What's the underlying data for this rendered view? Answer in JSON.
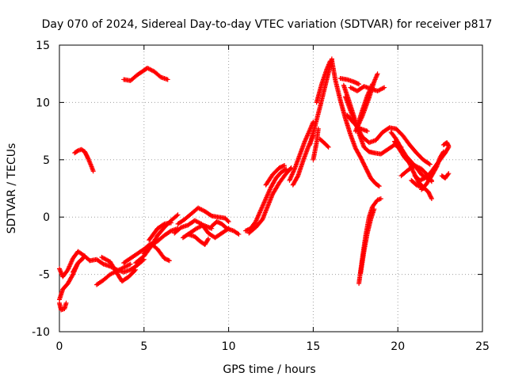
{
  "chart_data": {
    "type": "scatter",
    "title": "Day 070 of 2024, Sidereal Day-to-day VTEC variation (SDTVAR) for receiver p817",
    "xlabel": "GPS time / hours",
    "ylabel": "SDTVAR / TECUs",
    "xlim": [
      0,
      25
    ],
    "ylim": [
      -10,
      15
    ],
    "xticks": [
      "0",
      "5",
      "10",
      "15",
      "20",
      "25"
    ],
    "yticks": [
      "-10",
      "-5",
      "0",
      "5",
      "10",
      "15"
    ],
    "grid": true,
    "marker": "+",
    "color": "#ff0000",
    "segments": [
      [
        [
          0.0,
          -4.5
        ],
        [
          0.2,
          -5.2
        ],
        [
          0.5,
          -4.6
        ],
        [
          0.8,
          -3.6
        ],
        [
          1.1,
          -3.0
        ],
        [
          1.4,
          -3.3
        ],
        [
          1.8,
          -3.8
        ]
      ],
      [
        [
          0.0,
          -7.2
        ],
        [
          0.2,
          -6.3
        ],
        [
          0.5,
          -5.8
        ],
        [
          0.8,
          -5.0
        ],
        [
          1.1,
          -4.0
        ],
        [
          1.5,
          -3.4
        ]
      ],
      [
        [
          0.0,
          -7.5
        ],
        [
          0.1,
          -8.1
        ],
        [
          0.3,
          -8.0
        ],
        [
          0.4,
          -7.5
        ]
      ],
      [
        [
          0.8,
          -4.8
        ],
        [
          1.1,
          -4.0
        ],
        [
          1.4,
          -3.6
        ]
      ],
      [
        [
          0.9,
          5.6
        ],
        [
          1.1,
          5.8
        ],
        [
          1.3,
          5.9
        ],
        [
          1.5,
          5.7
        ],
        [
          1.7,
          5.1
        ],
        [
          1.9,
          4.4
        ],
        [
          2.0,
          4.0
        ]
      ],
      [
        [
          1.8,
          -3.8
        ],
        [
          2.2,
          -3.7
        ],
        [
          2.6,
          -4.1
        ],
        [
          3.0,
          -4.3
        ],
        [
          3.4,
          -4.6
        ],
        [
          3.8,
          -4.8
        ],
        [
          4.2,
          -4.6
        ],
        [
          4.6,
          -4.2
        ],
        [
          5.0,
          -3.7
        ]
      ],
      [
        [
          2.2,
          -5.9
        ],
        [
          2.6,
          -5.5
        ],
        [
          3.0,
          -5.0
        ],
        [
          3.4,
          -4.7
        ],
        [
          3.8,
          -4.4
        ],
        [
          4.2,
          -4.1
        ]
      ],
      [
        [
          2.5,
          -3.5
        ],
        [
          3.0,
          -3.9
        ],
        [
          3.4,
          -4.9
        ],
        [
          3.7,
          -5.6
        ],
        [
          4.1,
          -5.2
        ],
        [
          4.5,
          -4.6
        ]
      ],
      [
        [
          3.8,
          -4.0
        ],
        [
          4.2,
          -3.6
        ],
        [
          4.6,
          -3.2
        ],
        [
          5.0,
          -2.8
        ],
        [
          5.4,
          -2.3
        ],
        [
          5.8,
          -2.8
        ],
        [
          6.2,
          -3.6
        ],
        [
          6.5,
          -3.8
        ]
      ],
      [
        [
          3.8,
          12.0
        ],
        [
          4.2,
          11.9
        ],
        [
          4.6,
          12.4
        ],
        [
          5.0,
          12.8
        ],
        [
          5.2,
          13.0
        ],
        [
          5.6,
          12.7
        ],
        [
          6.0,
          12.2
        ],
        [
          6.4,
          12.0
        ]
      ],
      [
        [
          4.5,
          -4.0
        ],
        [
          5.0,
          -3.4
        ],
        [
          5.4,
          -2.6
        ],
        [
          5.8,
          -1.6
        ],
        [
          6.2,
          -0.9
        ],
        [
          6.6,
          -0.3
        ],
        [
          7.0,
          0.2
        ]
      ],
      [
        [
          5.0,
          -3.2
        ],
        [
          5.4,
          -2.5
        ],
        [
          5.8,
          -2.1
        ],
        [
          6.2,
          -1.6
        ],
        [
          6.6,
          -1.2
        ],
        [
          7.0,
          -1.0
        ]
      ],
      [
        [
          5.3,
          -2.0
        ],
        [
          5.8,
          -1.0
        ],
        [
          6.2,
          -0.6
        ],
        [
          6.6,
          -0.5
        ]
      ],
      [
        [
          6.8,
          -1.4
        ],
        [
          7.2,
          -0.9
        ],
        [
          7.6,
          -0.7
        ],
        [
          8.0,
          -0.3
        ],
        [
          8.4,
          -0.6
        ],
        [
          8.8,
          -1.4
        ],
        [
          9.2,
          -1.8
        ],
        [
          9.6,
          -1.4
        ],
        [
          10.0,
          -1.0
        ]
      ],
      [
        [
          7.0,
          -0.6
        ],
        [
          7.4,
          -0.2
        ],
        [
          7.8,
          0.3
        ],
        [
          8.2,
          0.8
        ],
        [
          8.6,
          0.5
        ],
        [
          9.0,
          0.1
        ],
        [
          9.4,
          0.0
        ],
        [
          9.8,
          -0.1
        ],
        [
          10.0,
          -0.4
        ]
      ],
      [
        [
          7.6,
          -1.5
        ],
        [
          8.0,
          -1.7
        ],
        [
          8.3,
          -2.1
        ],
        [
          8.6,
          -2.4
        ],
        [
          8.8,
          -1.9
        ]
      ],
      [
        [
          9.0,
          -0.8
        ],
        [
          9.3,
          -0.4
        ],
        [
          9.6,
          -0.6
        ],
        [
          9.9,
          -1.0
        ],
        [
          10.3,
          -1.2
        ],
        [
          10.6,
          -1.5
        ]
      ],
      [
        [
          7.3,
          -1.8
        ],
        [
          7.7,
          -1.4
        ],
        [
          8.1,
          -1.0
        ],
        [
          8.5,
          -0.7
        ],
        [
          9.0,
          -1.0
        ]
      ],
      [
        [
          11.0,
          -1.2
        ],
        [
          11.3,
          -1.0
        ],
        [
          11.6,
          -0.4
        ],
        [
          11.9,
          0.6
        ],
        [
          12.2,
          1.6
        ],
        [
          12.5,
          2.6
        ],
        [
          12.8,
          3.4
        ],
        [
          13.1,
          3.9
        ],
        [
          13.4,
          4.2
        ]
      ],
      [
        [
          11.2,
          -1.4
        ],
        [
          11.6,
          -0.9
        ],
        [
          12.0,
          -0.2
        ],
        [
          12.3,
          0.9
        ],
        [
          12.6,
          2.0
        ],
        [
          13.0,
          3.0
        ],
        [
          13.4,
          3.8
        ],
        [
          13.7,
          4.3
        ]
      ],
      [
        [
          12.2,
          2.8
        ],
        [
          12.6,
          3.7
        ],
        [
          13.0,
          4.3
        ],
        [
          13.3,
          4.5
        ]
      ],
      [
        [
          13.6,
          3.2
        ],
        [
          13.9,
          4.2
        ],
        [
          14.2,
          5.4
        ],
        [
          14.5,
          6.6
        ],
        [
          14.8,
          7.6
        ],
        [
          15.0,
          8.3
        ]
      ],
      [
        [
          13.8,
          2.8
        ],
        [
          14.1,
          3.6
        ],
        [
          14.4,
          4.9
        ],
        [
          14.7,
          6.1
        ],
        [
          15.0,
          7.1
        ]
      ],
      [
        [
          14.8,
          6.3
        ],
        [
          15.1,
          7.9
        ],
        [
          15.4,
          9.6
        ],
        [
          15.7,
          11.4
        ],
        [
          15.9,
          12.6
        ],
        [
          16.1,
          13.8
        ]
      ],
      [
        [
          15.2,
          10.0
        ],
        [
          15.5,
          11.6
        ],
        [
          15.8,
          12.9
        ],
        [
          16.0,
          13.6
        ]
      ],
      [
        [
          15.0,
          5.0
        ],
        [
          15.2,
          6.5
        ],
        [
          15.3,
          7.7
        ]
      ],
      [
        [
          15.4,
          6.8
        ],
        [
          15.7,
          6.4
        ],
        [
          15.9,
          6.1
        ]
      ],
      [
        [
          16.1,
          13.7
        ],
        [
          16.3,
          12.0
        ],
        [
          16.6,
          10.2
        ],
        [
          16.9,
          8.6
        ],
        [
          17.2,
          7.2
        ],
        [
          17.5,
          6.0
        ],
        [
          17.8,
          5.2
        ],
        [
          18.1,
          4.3
        ],
        [
          18.4,
          3.4
        ],
        [
          18.7,
          2.9
        ],
        [
          18.9,
          2.7
        ]
      ],
      [
        [
          16.6,
          12.1
        ],
        [
          17.0,
          12.0
        ],
        [
          17.4,
          11.8
        ],
        [
          17.7,
          11.6
        ]
      ],
      [
        [
          16.8,
          11.5
        ],
        [
          17.1,
          10.2
        ],
        [
          17.4,
          8.8
        ],
        [
          17.7,
          7.3
        ],
        [
          18.0,
          6.1
        ],
        [
          18.3,
          5.7
        ],
        [
          18.6,
          5.6
        ],
        [
          19.0,
          5.5
        ],
        [
          19.4,
          5.9
        ],
        [
          19.8,
          6.3
        ],
        [
          20.2,
          6.1
        ]
      ],
      [
        [
          16.9,
          10.5
        ],
        [
          17.2,
          9.3
        ],
        [
          17.5,
          8.1
        ],
        [
          17.9,
          7.0
        ],
        [
          18.3,
          6.5
        ],
        [
          18.7,
          6.7
        ],
        [
          19.1,
          7.4
        ],
        [
          19.5,
          7.8
        ],
        [
          19.9,
          7.7
        ],
        [
          20.3,
          7.1
        ],
        [
          20.7,
          6.3
        ],
        [
          21.1,
          5.6
        ],
        [
          21.5,
          5.0
        ],
        [
          21.9,
          4.6
        ]
      ],
      [
        [
          17.2,
          11.3
        ],
        [
          17.6,
          11.0
        ],
        [
          18.0,
          11.4
        ],
        [
          18.4,
          11.2
        ],
        [
          18.8,
          11.0
        ],
        [
          19.2,
          11.3
        ]
      ],
      [
        [
          17.5,
          7.5
        ],
        [
          17.9,
          8.8
        ],
        [
          18.3,
          10.4
        ],
        [
          18.6,
          11.8
        ],
        [
          18.8,
          12.5
        ]
      ],
      [
        [
          17.6,
          7.9
        ],
        [
          17.9,
          9.3
        ],
        [
          18.2,
          10.6
        ],
        [
          18.5,
          11.6
        ]
      ],
      [
        [
          17.0,
          8.9
        ],
        [
          17.4,
          8.2
        ],
        [
          17.8,
          7.7
        ],
        [
          18.2,
          7.5
        ]
      ],
      [
        [
          17.7,
          -5.8
        ],
        [
          17.9,
          -3.6
        ],
        [
          18.1,
          -1.6
        ],
        [
          18.3,
          0.0
        ],
        [
          18.5,
          0.9
        ],
        [
          18.8,
          1.5
        ],
        [
          19.0,
          1.6
        ]
      ],
      [
        [
          17.8,
          -4.9
        ],
        [
          18.0,
          -3.0
        ],
        [
          18.2,
          -1.4
        ],
        [
          18.4,
          -0.2
        ],
        [
          18.6,
          0.7
        ]
      ],
      [
        [
          19.6,
          7.4
        ],
        [
          19.9,
          6.8
        ],
        [
          20.2,
          6.0
        ],
        [
          20.5,
          5.3
        ],
        [
          20.8,
          4.8
        ],
        [
          21.1,
          4.3
        ],
        [
          21.4,
          3.7
        ],
        [
          21.7,
          3.4
        ],
        [
          22.0,
          3.2
        ]
      ],
      [
        [
          19.8,
          6.6
        ],
        [
          20.1,
          5.9
        ],
        [
          20.4,
          5.2
        ],
        [
          20.7,
          4.7
        ],
        [
          21.0,
          4.5
        ],
        [
          21.4,
          4.2
        ],
        [
          21.8,
          3.6
        ],
        [
          22.0,
          3.1
        ]
      ],
      [
        [
          20.6,
          5.0
        ],
        [
          20.9,
          4.0
        ],
        [
          21.2,
          3.1
        ],
        [
          21.5,
          2.6
        ],
        [
          21.8,
          2.2
        ],
        [
          22.0,
          1.6
        ]
      ],
      [
        [
          21.0,
          3.6
        ],
        [
          21.3,
          3.2
        ],
        [
          21.6,
          3.4
        ],
        [
          21.9,
          3.8
        ],
        [
          22.2,
          4.4
        ],
        [
          22.5,
          5.0
        ],
        [
          22.8,
          5.6
        ],
        [
          23.0,
          6.1
        ]
      ],
      [
        [
          21.4,
          2.4
        ],
        [
          21.7,
          2.9
        ],
        [
          22.0,
          3.6
        ],
        [
          22.3,
          4.4
        ],
        [
          22.5,
          5.2
        ],
        [
          22.7,
          5.7
        ]
      ],
      [
        [
          22.6,
          3.6
        ],
        [
          22.8,
          3.4
        ],
        [
          23.0,
          3.8
        ]
      ],
      [
        [
          22.7,
          6.3
        ],
        [
          22.9,
          6.5
        ],
        [
          23.0,
          6.2
        ]
      ],
      [
        [
          20.2,
          3.6
        ],
        [
          20.6,
          4.1
        ],
        [
          21.0,
          4.5
        ]
      ],
      [
        [
          20.8,
          3.2
        ],
        [
          21.1,
          2.8
        ],
        [
          21.5,
          2.5
        ]
      ]
    ]
  }
}
